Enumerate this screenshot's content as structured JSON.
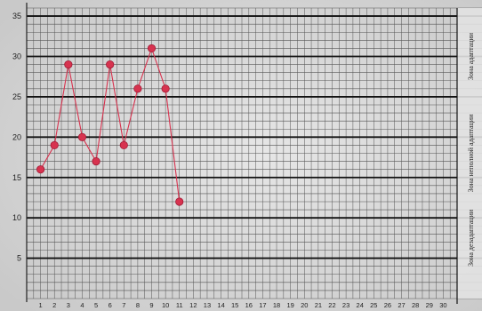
{
  "chart_data": {
    "type": "line",
    "title": "",
    "xlabel": "",
    "ylabel": "",
    "xlim": [
      0,
      31
    ],
    "ylim": [
      0,
      36
    ],
    "x_ticks": [
      1,
      2,
      3,
      4,
      5,
      6,
      7,
      8,
      9,
      10,
      11,
      12,
      13,
      14,
      15,
      16,
      17,
      18,
      19,
      20,
      21,
      22,
      23,
      24,
      25,
      26,
      27,
      28,
      29,
      30
    ],
    "y_ticks": [
      5,
      10,
      15,
      20,
      25,
      30,
      35
    ],
    "grid": true,
    "series": [
      {
        "x": [
          1,
          2,
          3,
          4,
          5,
          6,
          7,
          8,
          9,
          10,
          11
        ],
        "y": [
          16,
          19,
          29,
          20,
          17,
          29,
          19,
          26,
          31,
          26,
          12
        ],
        "color": "#d7334f"
      }
    ],
    "zones": [
      {
        "label": "Зона адаптации",
        "range": [
          25,
          35
        ]
      },
      {
        "label": "Зона неполной адаптации",
        "range": [
          16,
          20
        ]
      },
      {
        "label": "Зона дезадаптации",
        "range": [
          0,
          15
        ]
      }
    ]
  }
}
